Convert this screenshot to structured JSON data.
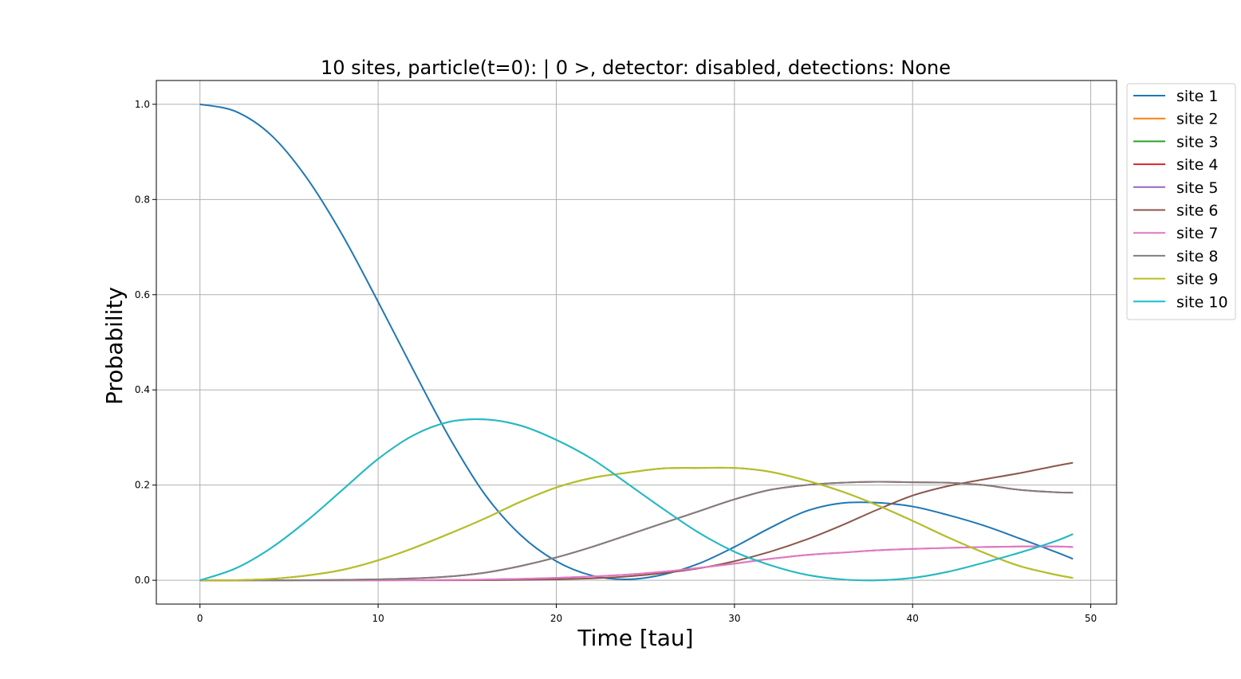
{
  "chart_data": {
    "type": "line",
    "title": "10 sites, particle(t=0): | 0 >, detector: disabled, detections: None",
    "xlabel": "Time [tau]",
    "ylabel": "Probability",
    "xlim": [
      -2.45,
      51.45
    ],
    "ylim": [
      -0.05,
      1.05
    ],
    "xticks": [
      0,
      10,
      20,
      30,
      40,
      50
    ],
    "xtick_labels": [
      "0",
      "10",
      "20",
      "30",
      "40",
      "50"
    ],
    "yticks": [
      0.0,
      0.2,
      0.4,
      0.6,
      0.8,
      1.0
    ],
    "ytick_labels": [
      "0.0",
      "0.2",
      "0.4",
      "0.6",
      "0.8",
      "1.0"
    ],
    "grid": true,
    "legend_position": "outside-upper-right",
    "x": [
      0,
      2,
      4,
      6,
      8,
      10,
      12,
      14,
      16,
      18,
      20,
      22,
      24,
      26,
      28,
      30,
      32,
      34,
      36,
      38,
      40,
      42,
      44,
      46,
      48,
      49
    ],
    "series": [
      {
        "name": "site 1",
        "color": "#1f77b4",
        "values": [
          1.0,
          0.985,
          0.935,
          0.845,
          0.725,
          0.585,
          0.44,
          0.3,
          0.18,
          0.095,
          0.04,
          0.01,
          0.002,
          0.012,
          0.035,
          0.07,
          0.11,
          0.145,
          0.162,
          0.163,
          0.155,
          0.137,
          0.115,
          0.088,
          0.06,
          0.045
        ]
      },
      {
        "name": "site 2",
        "color": "#ff7f0e",
        "values": [
          0.0,
          0.025,
          0.068,
          0.125,
          0.19,
          0.255,
          0.305,
          0.333,
          0.338,
          0.325,
          0.295,
          0.255,
          0.203,
          0.15,
          0.1,
          0.06,
          0.032,
          0.012,
          0.002,
          0.0,
          0.005,
          0.018,
          0.037,
          0.058,
          0.082,
          0.097
        ]
      },
      {
        "name": "site 3",
        "color": "#2ca02c",
        "values": [
          0.0,
          0.0003,
          0.003,
          0.01,
          0.022,
          0.042,
          0.068,
          0.098,
          0.13,
          0.165,
          0.195,
          0.215,
          0.226,
          0.235,
          0.236,
          0.236,
          0.228,
          0.21,
          0.187,
          0.158,
          0.125,
          0.09,
          0.058,
          0.03,
          0.012,
          0.005
        ]
      },
      {
        "name": "site 4",
        "color": "#d62728",
        "values": [
          0.0,
          0.0,
          0.0,
          0.0002,
          0.0008,
          0.002,
          0.004,
          0.008,
          0.016,
          0.03,
          0.048,
          0.07,
          0.095,
          0.12,
          0.145,
          0.17,
          0.19,
          0.2,
          0.205,
          0.207,
          0.206,
          0.205,
          0.2,
          0.19,
          0.185,
          0.184
        ]
      },
      {
        "name": "site 5",
        "color": "#9467bd",
        "values": [
          0.0,
          0.0,
          0.0,
          0.0,
          0.0,
          0.0001,
          0.0003,
          0.0007,
          0.0015,
          0.003,
          0.005,
          0.008,
          0.012,
          0.018,
          0.026,
          0.035,
          0.045,
          0.053,
          0.058,
          0.063,
          0.066,
          0.068,
          0.07,
          0.071,
          0.071,
          0.07
        ]
      },
      {
        "name": "site 6",
        "color": "#8c564b",
        "values": [
          0.0,
          0.0,
          0.0,
          0.0,
          0.0,
          0.0,
          0.0,
          0.0001,
          0.0003,
          0.0008,
          0.002,
          0.004,
          0.008,
          0.015,
          0.025,
          0.04,
          0.06,
          0.085,
          0.115,
          0.148,
          0.178,
          0.198,
          0.212,
          0.225,
          0.24,
          0.247
        ]
      },
      {
        "name": "site 7",
        "color": "#e377c2",
        "values": [
          0.0,
          0.0,
          0.0,
          0.0,
          0.0,
          0.0001,
          0.0003,
          0.0007,
          0.0015,
          0.003,
          0.005,
          0.008,
          0.012,
          0.018,
          0.026,
          0.035,
          0.045,
          0.053,
          0.058,
          0.063,
          0.066,
          0.068,
          0.07,
          0.071,
          0.071,
          0.07
        ]
      },
      {
        "name": "site 8",
        "color": "#7f7f7f",
        "values": [
          0.0,
          0.0,
          0.0,
          0.0002,
          0.0008,
          0.002,
          0.004,
          0.008,
          0.016,
          0.03,
          0.048,
          0.07,
          0.095,
          0.12,
          0.145,
          0.17,
          0.19,
          0.2,
          0.205,
          0.207,
          0.206,
          0.205,
          0.2,
          0.19,
          0.185,
          0.184
        ]
      },
      {
        "name": "site 9",
        "color": "#bcbd22",
        "values": [
          0.0,
          0.0003,
          0.003,
          0.01,
          0.022,
          0.042,
          0.068,
          0.098,
          0.13,
          0.165,
          0.195,
          0.215,
          0.226,
          0.235,
          0.236,
          0.236,
          0.228,
          0.21,
          0.187,
          0.158,
          0.125,
          0.09,
          0.058,
          0.03,
          0.012,
          0.005
        ]
      },
      {
        "name": "site 10",
        "color": "#17becf",
        "values": [
          0.0,
          0.025,
          0.068,
          0.125,
          0.19,
          0.255,
          0.305,
          0.333,
          0.338,
          0.325,
          0.295,
          0.255,
          0.203,
          0.15,
          0.1,
          0.06,
          0.032,
          0.012,
          0.002,
          0.0,
          0.005,
          0.018,
          0.037,
          0.058,
          0.082,
          0.097
        ]
      }
    ]
  }
}
